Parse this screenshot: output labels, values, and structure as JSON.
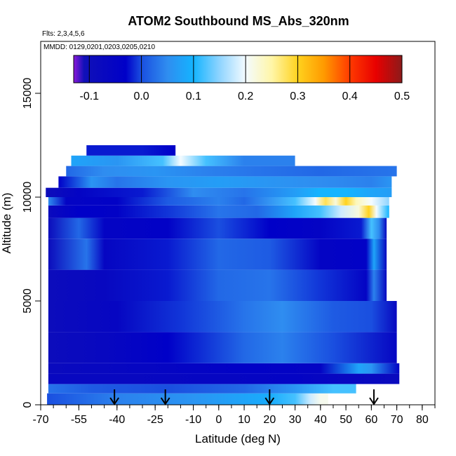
{
  "chart_data": {
    "type": "heatmap",
    "title": "ATOM2 Southbound MS_Abs_320nm",
    "flights_label": "Flts: 2,3,4,5,6",
    "mmdd_label": "MMDD: 0129,0201,0203,0205,0210",
    "xlabel": "Latitude (deg N)",
    "ylabel": "Altitude (m)",
    "xlim": [
      -70,
      85
    ],
    "ylim": [
      0,
      17500
    ],
    "x_ticks": [
      -70,
      -55,
      -40,
      -25,
      -10,
      0,
      10,
      20,
      30,
      40,
      50,
      60,
      70,
      80
    ],
    "x_tick_labels": [
      "-70",
      "-55",
      "-40",
      "-25",
      "-10",
      "0",
      "10",
      "20",
      "30",
      "40",
      "50",
      "60",
      "70",
      "80"
    ],
    "x_minor_step": 5,
    "y_ticks": [
      0,
      5000,
      10000,
      15000
    ],
    "y_tick_labels": [
      "0",
      "5000",
      "10000",
      "15000"
    ],
    "colorbar": {
      "min": -0.13,
      "max": 0.5,
      "ticks": [
        -0.1,
        0.0,
        0.1,
        0.2,
        0.3,
        0.4,
        0.5
      ],
      "tick_labels": [
        "-0.1",
        "0.0",
        "0.1",
        "0.2",
        "0.3",
        "0.4",
        "0.5"
      ],
      "stops": [
        {
          "v": -0.13,
          "color": "#8b1ad9"
        },
        {
          "v": -0.11,
          "color": "#1010b8"
        },
        {
          "v": -0.03,
          "color": "#0000c8"
        },
        {
          "v": 0.0,
          "color": "#1a4fe0"
        },
        {
          "v": 0.05,
          "color": "#2f8df0"
        },
        {
          "v": 0.1,
          "color": "#14b4ff"
        },
        {
          "v": 0.15,
          "color": "#8fd4ff"
        },
        {
          "v": 0.2,
          "color": "#f4fbff"
        },
        {
          "v": 0.25,
          "color": "#fff6a8"
        },
        {
          "v": 0.3,
          "color": "#ffd21e"
        },
        {
          "v": 0.35,
          "color": "#ff9a00"
        },
        {
          "v": 0.4,
          "color": "#ff3a00"
        },
        {
          "v": 0.45,
          "color": "#e80000"
        },
        {
          "v": 0.5,
          "color": "#8c1a1a"
        }
      ]
    },
    "arrows_latitude": [
      -41,
      -21,
      20,
      61
    ],
    "extent": {
      "lat_min": -67.5,
      "lat_max": 71
    },
    "layers": [
      {
        "alt": [
          0,
          550
        ],
        "lat_min": -67.5,
        "lat_max": 43,
        "segments": [
          [
            -67.5,
            0.0
          ],
          [
            -40,
            0.04
          ],
          [
            -10,
            0.06
          ],
          [
            20,
            0.09
          ],
          [
            30,
            0.12
          ],
          [
            36,
            0.18
          ],
          [
            40,
            0.21
          ],
          [
            43,
            0.21
          ]
        ]
      },
      {
        "alt": [
          550,
          1000
        ],
        "lat_min": -67,
        "lat_max": 54,
        "segments": [
          [
            -67,
            0.03
          ],
          [
            -50,
            0.01
          ],
          [
            -20,
            0.0
          ],
          [
            10,
            0.02
          ],
          [
            30,
            0.06
          ],
          [
            45,
            0.12
          ],
          [
            54,
            0.12
          ]
        ]
      },
      {
        "alt": [
          1000,
          1500
        ],
        "lat_min": -67,
        "lat_max": 71,
        "segments": [
          [
            -67,
            -0.07
          ],
          [
            -40,
            -0.07
          ],
          [
            0,
            -0.06
          ],
          [
            30,
            -0.05
          ],
          [
            50,
            -0.07
          ],
          [
            71,
            -0.08
          ]
        ]
      },
      {
        "alt": [
          1500,
          2000
        ],
        "lat_min": -67,
        "lat_max": 71,
        "segments": [
          [
            -67,
            -0.08
          ],
          [
            -30,
            -0.06
          ],
          [
            10,
            -0.04
          ],
          [
            40,
            -0.05
          ],
          [
            55,
            0.08
          ],
          [
            60,
            0.06
          ],
          [
            71,
            -0.05
          ]
        ]
      },
      {
        "alt": [
          2000,
          3500
        ],
        "lat_min": -67,
        "lat_max": 70,
        "segments": [
          [
            -67,
            -0.09
          ],
          [
            -45,
            -0.07
          ],
          [
            -20,
            -0.03
          ],
          [
            10,
            0.02
          ],
          [
            25,
            0.04
          ],
          [
            45,
            0.0
          ],
          [
            70,
            -0.06
          ]
        ]
      },
      {
        "alt": [
          3500,
          5000
        ],
        "lat_min": -67,
        "lat_max": 70,
        "segments": [
          [
            -67,
            -0.09
          ],
          [
            -40,
            -0.06
          ],
          [
            -15,
            -0.01
          ],
          [
            10,
            0.03
          ],
          [
            25,
            0.05
          ],
          [
            45,
            0.01
          ],
          [
            60,
            0.0
          ],
          [
            70,
            -0.07
          ]
        ]
      },
      {
        "alt": [
          5000,
          6500
        ],
        "lat_min": -67,
        "lat_max": 66,
        "segments": [
          [
            -67,
            -0.09
          ],
          [
            -45,
            -0.07
          ],
          [
            -20,
            -0.02
          ],
          [
            0,
            0.02
          ],
          [
            20,
            0.03
          ],
          [
            40,
            -0.01
          ],
          [
            58,
            -0.05
          ],
          [
            61,
            0.04
          ],
          [
            66,
            -0.07
          ]
        ]
      },
      {
        "alt": [
          6500,
          8000
        ],
        "lat_min": -67,
        "lat_max": 66,
        "segments": [
          [
            -67,
            -0.09
          ],
          [
            -52,
            0.03
          ],
          [
            -45,
            -0.06
          ],
          [
            -20,
            -0.02
          ],
          [
            0,
            0.02
          ],
          [
            20,
            0.01
          ],
          [
            40,
            -0.05
          ],
          [
            58,
            -0.04
          ],
          [
            61,
            0.08
          ],
          [
            66,
            -0.07
          ]
        ]
      },
      {
        "alt": [
          8000,
          9000
        ],
        "lat_min": -67,
        "lat_max": 66,
        "segments": [
          [
            -67,
            -0.09
          ],
          [
            -55,
            0.02
          ],
          [
            -45,
            -0.05
          ],
          [
            -20,
            -0.04
          ],
          [
            0,
            0.0
          ],
          [
            20,
            -0.03
          ],
          [
            40,
            -0.05
          ],
          [
            56,
            -0.02
          ],
          [
            60,
            0.12
          ],
          [
            63,
            0.05
          ],
          [
            66,
            -0.07
          ]
        ]
      },
      {
        "alt": [
          9000,
          9600
        ],
        "lat_min": -67,
        "lat_max": 67,
        "segments": [
          [
            -67,
            -0.08
          ],
          [
            -55,
            -0.03
          ],
          [
            -40,
            -0.04
          ],
          [
            -20,
            -0.01
          ],
          [
            0,
            0.03
          ],
          [
            15,
            0.02
          ],
          [
            30,
            0.08
          ],
          [
            40,
            0.12
          ],
          [
            48,
            0.18
          ],
          [
            55,
            0.22
          ],
          [
            59,
            0.3
          ],
          [
            62,
            0.2
          ],
          [
            67,
            0.1
          ]
        ]
      },
      {
        "alt": [
          9600,
          10000
        ],
        "lat_min": -67,
        "lat_max": 67,
        "segments": [
          [
            -67,
            0.05
          ],
          [
            -60,
            -0.05
          ],
          [
            -40,
            -0.04
          ],
          [
            -20,
            0.01
          ],
          [
            0,
            0.04
          ],
          [
            10,
            0.02
          ],
          [
            30,
            0.12
          ],
          [
            38,
            0.2
          ],
          [
            42,
            0.28
          ],
          [
            46,
            0.22
          ],
          [
            50,
            0.3
          ],
          [
            54,
            0.24
          ],
          [
            60,
            0.2
          ],
          [
            67,
            0.15
          ]
        ]
      },
      {
        "alt": [
          10000,
          10450
        ],
        "lat_min": -68,
        "lat_max": 68,
        "segments": [
          [
            -68,
            -0.1
          ],
          [
            -55,
            -0.05
          ],
          [
            -30,
            -0.02
          ],
          [
            -10,
            0.05
          ],
          [
            10,
            0.03
          ],
          [
            30,
            0.07
          ],
          [
            40,
            0.1
          ],
          [
            50,
            0.1
          ],
          [
            60,
            0.08
          ],
          [
            68,
            0.07
          ]
        ]
      },
      {
        "alt": [
          10450,
          11000
        ],
        "lat_min": -63,
        "lat_max": 68,
        "segments": [
          [
            -63,
            -0.03
          ],
          [
            -50,
            0.06
          ],
          [
            -40,
            0.03
          ],
          [
            -20,
            0.06
          ],
          [
            0,
            0.07
          ],
          [
            20,
            0.06
          ],
          [
            40,
            0.05
          ],
          [
            60,
            0.04
          ],
          [
            68,
            0.06
          ]
        ]
      },
      {
        "alt": [
          11000,
          11500
        ],
        "lat_min": -60,
        "lat_max": 70,
        "segments": [
          [
            -60,
            0.02
          ],
          [
            -45,
            0.05
          ],
          [
            -25,
            0.06
          ],
          [
            -5,
            0.04
          ],
          [
            15,
            0.03
          ],
          [
            40,
            0.02
          ],
          [
            70,
            0.03
          ]
        ]
      },
      {
        "alt": [
          11500,
          12000
        ],
        "lat_min": -58,
        "lat_max": 30,
        "segments": [
          [
            -58,
            0.08
          ],
          [
            -40,
            0.06
          ],
          [
            -22,
            0.12
          ],
          [
            -15,
            0.2
          ],
          [
            -5,
            0.12
          ],
          [
            10,
            0.04
          ],
          [
            30,
            0.04
          ]
        ]
      },
      {
        "alt": [
          12000,
          12500
        ],
        "lat_min": -52,
        "lat_max": -17,
        "segments": [
          [
            -52,
            -0.02
          ],
          [
            -30,
            -0.02
          ],
          [
            -17,
            -0.03
          ]
        ]
      }
    ]
  }
}
